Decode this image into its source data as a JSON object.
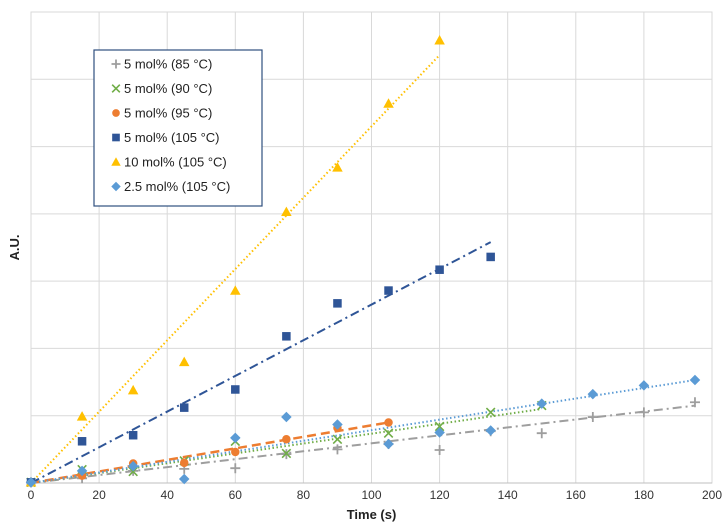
{
  "chart_data": {
    "type": "scatter",
    "title": "",
    "xlabel": "Time (s)",
    "ylabel": "A.U.",
    "xlim": [
      0,
      200
    ],
    "ylim": [
      0,
      7
    ],
    "xticks": [
      0,
      20,
      40,
      60,
      80,
      100,
      120,
      140,
      160,
      180,
      200
    ],
    "show_y_tick_labels": false,
    "grid": true,
    "legend_position": "top-left",
    "series": [
      {
        "name": "5 mol% (85 °C)",
        "marker": "plus",
        "color": "#9e9e9e",
        "line_style": "dash-dot",
        "x": [
          0,
          15,
          30,
          45,
          60,
          75,
          90,
          105,
          120,
          135,
          150,
          165,
          180,
          195
        ],
        "y": [
          0.01,
          0.07,
          0.18,
          0.21,
          0.22,
          0.43,
          0.5,
          0.58,
          0.49,
          0.77,
          0.74,
          0.98,
          1.05,
          1.2
        ],
        "trend": [
          [
            0,
            0.0
          ],
          [
            195,
            1.15
          ]
        ]
      },
      {
        "name": "5 mol% (90 °C)",
        "marker": "x",
        "color": "#70ad47",
        "line_style": "dotted",
        "x": [
          0,
          15,
          30,
          45,
          60,
          75,
          90,
          105,
          120,
          135,
          150
        ],
        "y": [
          0.01,
          0.2,
          0.17,
          0.33,
          0.62,
          0.44,
          0.65,
          0.74,
          0.84,
          1.05,
          1.15
        ],
        "trend": [
          [
            0,
            0.0
          ],
          [
            150,
            1.1
          ]
        ]
      },
      {
        "name": "5 mol% (95 °C)",
        "marker": "circle",
        "color": "#ed7d31",
        "line_style": "dashed",
        "x": [
          0,
          15,
          30,
          45,
          60,
          75,
          90,
          105
        ],
        "y": [
          0.01,
          0.11,
          0.29,
          0.3,
          0.46,
          0.65,
          0.82,
          0.9
        ],
        "trend": [
          [
            0,
            0.0
          ],
          [
            105,
            0.9
          ]
        ]
      },
      {
        "name": "5 mol% (105 °C)",
        "marker": "square",
        "color": "#2f5597",
        "line_style": "dash-dot",
        "x": [
          0,
          15,
          30,
          45,
          60,
          75,
          90,
          105,
          120,
          135
        ],
        "y": [
          0.01,
          0.62,
          0.71,
          1.12,
          1.39,
          2.18,
          2.67,
          2.86,
          3.17,
          3.36
        ],
        "trend": [
          [
            0,
            0.0
          ],
          [
            135,
            3.58
          ]
        ]
      },
      {
        "name": "10 mol% (105 °C)",
        "marker": "triangle",
        "color": "#ffc000",
        "line_style": "dotted",
        "x": [
          0,
          15,
          30,
          45,
          60,
          75,
          90,
          105,
          120
        ],
        "y": [
          0.01,
          0.99,
          1.38,
          1.8,
          2.86,
          4.03,
          4.69,
          5.64,
          6.58
        ],
        "trend": [
          [
            0,
            0.0
          ],
          [
            120,
            6.36
          ]
        ]
      },
      {
        "name": "2.5 mol% (105 °C)",
        "marker": "diamond",
        "color": "#5b9bd5",
        "line_style": "dotted",
        "x": [
          0,
          15,
          30,
          45,
          60,
          75,
          90,
          105,
          120,
          135,
          150,
          165,
          180,
          195
        ],
        "y": [
          0.01,
          0.18,
          0.25,
          0.06,
          0.67,
          0.98,
          0.87,
          0.58,
          0.75,
          0.78,
          1.18,
          1.32,
          1.45,
          1.53
        ],
        "trend": [
          [
            0,
            0.0
          ],
          [
            195,
            1.53
          ]
        ]
      }
    ]
  }
}
